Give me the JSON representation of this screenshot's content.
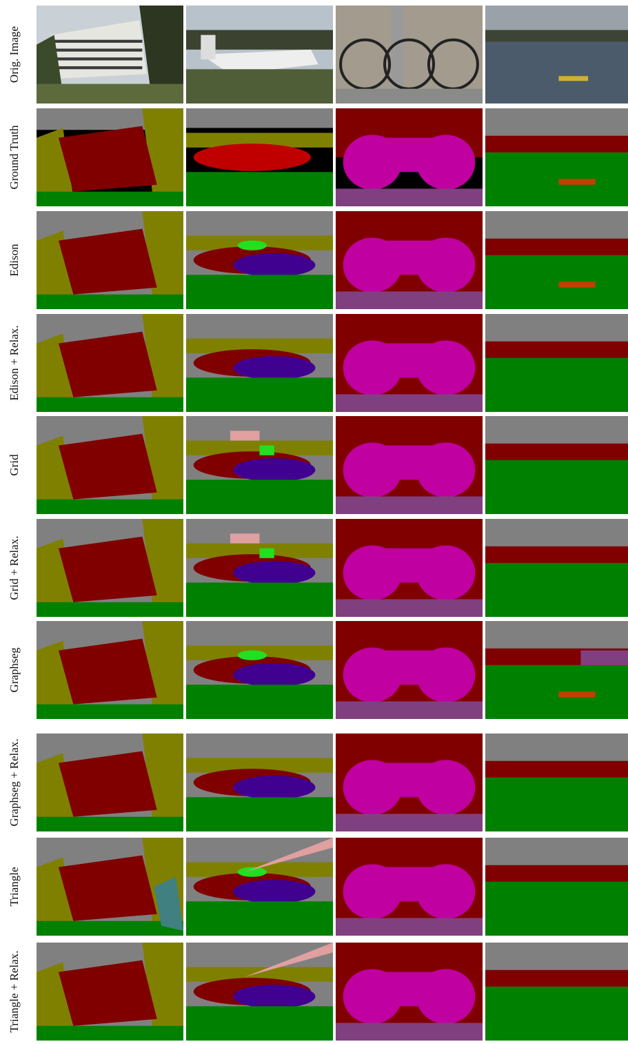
{
  "rows": [
    {
      "label": "Orig. Image"
    },
    {
      "label": "Ground Truth"
    },
    {
      "label": "Edison"
    },
    {
      "label": "Edison + Relax."
    },
    {
      "label": "Grid"
    },
    {
      "label": "Grid + Relax."
    },
    {
      "label": "Graphseg"
    },
    {
      "label": "Graphseg + Relax."
    },
    {
      "label": "Triangle"
    },
    {
      "label": "Triangle + Relax."
    }
  ]
}
